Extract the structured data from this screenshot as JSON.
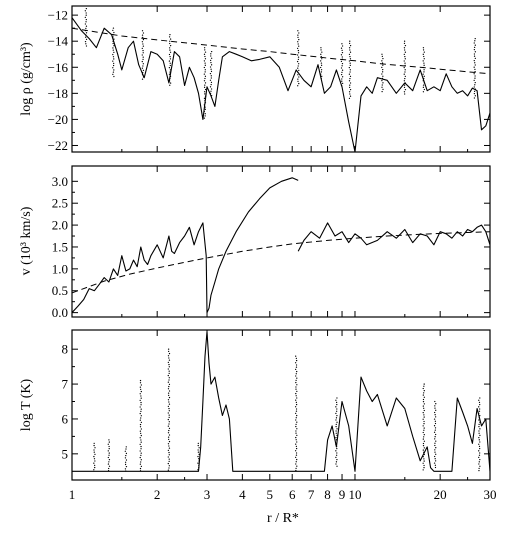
{
  "chart_data": [
    {
      "type": "line",
      "ylabel": "log ρ (g/cm³)",
      "xlabel": "",
      "xscale": "log",
      "xlim": [
        1,
        30
      ],
      "ylim": [
        -22.5,
        -11.3
      ],
      "yticks": [
        -22,
        -20,
        -18,
        -16,
        -14,
        -12
      ],
      "ytick_labels": [
        "−22",
        "−20",
        "−18",
        "−16",
        "−14",
        "−12"
      ],
      "x_tick_labels_shown": false,
      "series": [
        {
          "style": "solid",
          "x": [
            1.0,
            1.08,
            1.15,
            1.22,
            1.3,
            1.38,
            1.45,
            1.5,
            1.58,
            1.65,
            1.72,
            1.8,
            1.9,
            2.0,
            2.1,
            2.2,
            2.3,
            2.4,
            2.5,
            2.6,
            2.7,
            2.8,
            2.9,
            3.0,
            3.1,
            3.2,
            3.3,
            3.4,
            3.6,
            3.8,
            4.0,
            4.3,
            4.6,
            5.0,
            5.4,
            5.8,
            6.2,
            6.6,
            7.0,
            7.4,
            7.8,
            8.2,
            8.6,
            9.0,
            9.5,
            10.0,
            10.5,
            11.0,
            11.5,
            12.0,
            13.0,
            14.0,
            15.0,
            16.0,
            17.0,
            18.0,
            19.0,
            20.0,
            21.0,
            22.0,
            23.0,
            24.0,
            25.0,
            26.0,
            27.0,
            28.0,
            29.0,
            30.0
          ],
          "y": [
            -12.2,
            -13.2,
            -13.8,
            -14.5,
            -13.0,
            -13.5,
            -15.0,
            -16.2,
            -14.5,
            -14.0,
            -15.8,
            -16.8,
            -14.8,
            -15.0,
            -15.5,
            -17.2,
            -14.8,
            -15.2,
            -17.4,
            -16.0,
            -16.8,
            -18.0,
            -20.0,
            -17.5,
            -18.2,
            -19.0,
            -17.0,
            -15.2,
            -14.8,
            -15.0,
            -15.2,
            -15.5,
            -15.4,
            -15.2,
            -16.0,
            -17.8,
            -16.2,
            -17.0,
            -17.5,
            -15.8,
            -18.0,
            -17.5,
            -16.2,
            -17.5,
            -20.2,
            -22.5,
            -18.2,
            -17.5,
            -18.0,
            -16.8,
            -17.0,
            -18.0,
            -17.2,
            -17.8,
            -16.2,
            -17.8,
            -17.5,
            -17.8,
            -16.5,
            -17.5,
            -18.0,
            -17.8,
            -18.2,
            -17.6,
            -17.8,
            -20.8,
            -20.5,
            -19.5
          ]
        },
        {
          "style": "dashed",
          "x": [
            1.0,
            1.5,
            2.0,
            3.0,
            4.0,
            5.0,
            6.0,
            7.0,
            8.0,
            10.0,
            12.0,
            15.0,
            18.0,
            20.0,
            25.0,
            30.0
          ],
          "y": [
            -13.0,
            -13.6,
            -13.9,
            -14.3,
            -14.6,
            -14.8,
            -15.0,
            -15.15,
            -15.3,
            -15.5,
            -15.7,
            -15.9,
            -16.05,
            -16.15,
            -16.35,
            -16.5
          ]
        }
      ],
      "spikes": [
        {
          "x": 1.12,
          "ytop": -11.5,
          "ybot": -14.5
        },
        {
          "x": 1.4,
          "ytop": -13.0,
          "ybot": -16.8
        },
        {
          "x": 1.78,
          "ytop": -13.2,
          "ybot": -17.0
        },
        {
          "x": 2.22,
          "ytop": -13.5,
          "ybot": -17.5
        },
        {
          "x": 2.95,
          "ytop": -14.5,
          "ybot": -20.0
        },
        {
          "x": 3.1,
          "ytop": -14.8,
          "ybot": -18.2
        },
        {
          "x": 6.3,
          "ytop": -13.2,
          "ybot": -17.5
        },
        {
          "x": 7.6,
          "ytop": -14.5,
          "ybot": -17.0
        },
        {
          "x": 9.0,
          "ytop": -14.2,
          "ybot": -17.5
        },
        {
          "x": 9.6,
          "ytop": -14.0,
          "ybot": -18.5
        },
        {
          "x": 12.5,
          "ytop": -15.0,
          "ybot": -18.0
        },
        {
          "x": 15.0,
          "ytop": -14.0,
          "ybot": -18.2
        },
        {
          "x": 17.5,
          "ytop": -14.5,
          "ybot": -18.0
        },
        {
          "x": 26.5,
          "ytop": -13.8,
          "ybot": -18.5
        }
      ]
    },
    {
      "type": "line",
      "ylabel": "v (10³ km/s)",
      "xlabel": "",
      "xscale": "log",
      "xlim": [
        1,
        30
      ],
      "ylim": [
        -0.1,
        3.35
      ],
      "yticks": [
        0.0,
        0.5,
        1.0,
        1.5,
        2.0,
        2.5,
        3.0
      ],
      "ytick_labels": [
        "0.0",
        "0.5",
        "1.0",
        "1.5",
        "2.0",
        "2.5",
        "3.0"
      ],
      "x_tick_labels_shown": false,
      "series": [
        {
          "style": "solid",
          "x": [
            1.0,
            1.05,
            1.1,
            1.15,
            1.2,
            1.25,
            1.3,
            1.35,
            1.4,
            1.45,
            1.5,
            1.55,
            1.6,
            1.65,
            1.7,
            1.75,
            1.8,
            1.85,
            1.9,
            2.0,
            2.1,
            2.2,
            2.25,
            2.3,
            2.4,
            2.5,
            2.6,
            2.7,
            2.8,
            2.9,
            2.98,
            3.0,
            3.05,
            3.1,
            3.2,
            3.3,
            3.5,
            3.8,
            4.2,
            4.6,
            5.0,
            5.5,
            6.0,
            6.3
          ],
          "y": [
            0.0,
            0.15,
            0.3,
            0.55,
            0.5,
            0.65,
            0.8,
            0.7,
            1.0,
            0.85,
            1.3,
            0.95,
            1.0,
            1.2,
            1.05,
            1.5,
            1.2,
            1.1,
            1.3,
            1.55,
            1.25,
            1.75,
            1.4,
            1.35,
            1.6,
            1.75,
            1.95,
            1.55,
            1.85,
            2.05,
            1.3,
            0.0,
            0.1,
            0.4,
            0.7,
            1.0,
            1.4,
            1.85,
            2.3,
            2.6,
            2.85,
            3.0,
            3.08,
            3.02
          ]
        },
        {
          "style": "solid",
          "x": [
            6.3,
            6.6,
            7.0,
            7.5,
            8.0,
            8.5,
            9.0,
            9.5,
            10.0,
            10.5,
            11.0,
            12.0,
            13.0,
            14.0,
            15.0,
            16.0,
            17.0,
            18.0,
            19.0,
            20.0,
            21.0,
            22.0,
            23.0,
            24.0,
            25.0,
            26.0,
            27.0,
            28.0,
            29.0,
            30.0
          ],
          "y": [
            1.4,
            1.65,
            1.85,
            1.7,
            2.05,
            1.75,
            1.85,
            1.6,
            1.8,
            1.7,
            1.55,
            1.65,
            1.85,
            1.7,
            1.9,
            1.6,
            1.8,
            1.75,
            1.55,
            1.85,
            1.8,
            1.7,
            1.85,
            1.75,
            1.9,
            1.85,
            1.95,
            2.0,
            1.85,
            1.55
          ]
        },
        {
          "style": "dashed",
          "x": [
            1.0,
            1.3,
            1.6,
            2.0,
            2.5,
            3.0,
            4.0,
            5.0,
            6.0,
            8.0,
            10.0,
            13.0,
            16.0,
            20.0,
            25.0,
            30.0
          ],
          "y": [
            0.45,
            0.72,
            0.88,
            1.02,
            1.15,
            1.25,
            1.4,
            1.5,
            1.57,
            1.65,
            1.7,
            1.75,
            1.78,
            1.81,
            1.83,
            1.85
          ]
        }
      ]
    },
    {
      "type": "line",
      "ylabel": "log T (K)",
      "xlabel": "r / R*",
      "xscale": "log",
      "xlim": [
        1,
        30
      ],
      "ylim": [
        4.25,
        8.55
      ],
      "yticks": [
        5,
        6,
        7,
        8
      ],
      "ytick_labels": [
        "5",
        "6",
        "7",
        "8"
      ],
      "xticks": [
        1,
        2,
        3,
        4,
        5,
        6,
        7,
        8,
        9,
        10,
        20,
        30
      ],
      "xtick_labels": [
        "1",
        "2",
        "3",
        "4",
        "5",
        "6",
        "7",
        "8",
        "9",
        "10",
        "20",
        "30"
      ],
      "series": [
        {
          "style": "solid",
          "x": [
            1.0,
            2.8,
            2.85,
            2.9,
            2.95,
            3.0,
            3.05,
            3.1,
            3.2,
            3.3,
            3.4,
            3.5,
            3.6,
            3.7,
            4.0,
            6.0,
            7.8,
            8.0,
            8.3,
            8.6,
            9.0,
            9.5,
            10.0,
            10.5,
            11.0,
            11.5,
            12.0,
            13.0,
            14.0,
            15.0,
            16.0,
            17.0,
            18.0,
            18.5,
            19.0,
            20.0,
            21.0,
            22.0,
            23.0,
            24.0,
            25.0,
            26.0,
            27.0,
            28.0,
            29.0,
            30.0
          ],
          "y": [
            4.5,
            4.5,
            5.2,
            6.5,
            7.8,
            8.5,
            7.6,
            7.0,
            7.2,
            6.6,
            6.1,
            6.4,
            6.0,
            4.5,
            4.5,
            4.5,
            4.5,
            5.4,
            5.8,
            5.2,
            6.5,
            5.8,
            4.5,
            7.2,
            6.8,
            6.5,
            6.7,
            5.8,
            6.6,
            6.3,
            5.5,
            4.8,
            5.2,
            4.6,
            4.5,
            4.5,
            4.5,
            4.5,
            6.6,
            6.2,
            5.8,
            5.3,
            6.3,
            5.8,
            6.0,
            4.5
          ]
        }
      ],
      "spikes": [
        {
          "x": 1.2,
          "ytop": 5.3,
          "ybot": 4.5
        },
        {
          "x": 1.35,
          "ytop": 5.4,
          "ybot": 4.5
        },
        {
          "x": 1.55,
          "ytop": 5.2,
          "ybot": 4.5
        },
        {
          "x": 1.75,
          "ytop": 7.1,
          "ybot": 4.5
        },
        {
          "x": 2.2,
          "ytop": 8.0,
          "ybot": 4.5
        },
        {
          "x": 2.8,
          "ytop": 5.3,
          "ybot": 4.5
        },
        {
          "x": 6.2,
          "ytop": 7.8,
          "ybot": 4.5
        },
        {
          "x": 8.6,
          "ytop": 6.6,
          "ybot": 4.6
        },
        {
          "x": 17.5,
          "ytop": 7.0,
          "ybot": 4.5
        },
        {
          "x": 19.2,
          "ytop": 6.5,
          "ybot": 4.6
        },
        {
          "x": 27.5,
          "ytop": 6.6,
          "ybot": 4.5
        }
      ]
    }
  ]
}
